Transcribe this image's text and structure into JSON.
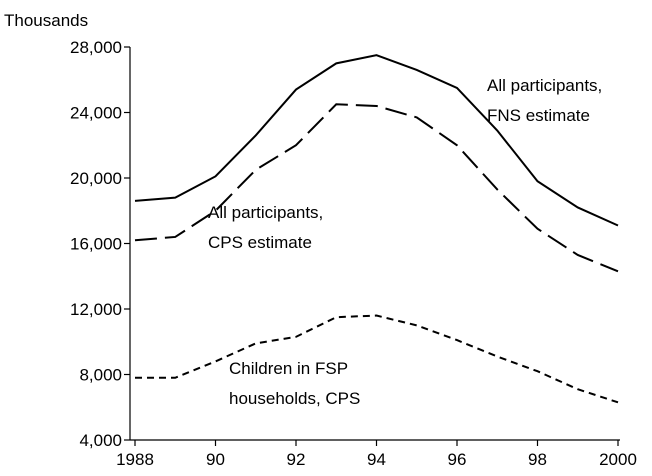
{
  "chart_data": {
    "type": "line",
    "y_axis_label": "Thousands",
    "x": [
      1988,
      1989,
      1990,
      1991,
      1992,
      1993,
      1994,
      1995,
      1996,
      1997,
      1998,
      1999,
      2000
    ],
    "xlim": [
      1988,
      2000
    ],
    "xticks": [
      1988,
      {
        "value": 1990,
        "label": "90"
      },
      {
        "value": 1992,
        "label": "92"
      },
      {
        "value": 1994,
        "label": "94"
      },
      {
        "value": 1996,
        "label": "96"
      },
      {
        "value": 1998,
        "label": "98"
      },
      2000
    ],
    "ylim": [
      4000,
      28000
    ],
    "yticks": [
      {
        "value": 4000,
        "label": "4,000"
      },
      {
        "value": 8000,
        "label": "8,000"
      },
      {
        "value": 12000,
        "label": "12,000"
      },
      {
        "value": 16000,
        "label": "16,000"
      },
      {
        "value": 20000,
        "label": "20,000"
      },
      {
        "value": 24000,
        "label": "24,000"
      },
      {
        "value": 28000,
        "label": "28,000"
      }
    ],
    "grid": false,
    "series": [
      {
        "name": [
          "All participants,",
          "FNS estimate"
        ],
        "color": "#000000",
        "dash": "solid",
        "values": [
          18600,
          18800,
          20100,
          22600,
          25400,
          27000,
          27500,
          26600,
          25500,
          22900,
          19800,
          18200,
          17100
        ]
      },
      {
        "name": [
          "All participants,",
          "CPS estimate"
        ],
        "color": "#000000",
        "dash": "long",
        "values": [
          16200,
          16400,
          18000,
          20500,
          22000,
          24500,
          24400,
          23700,
          22000,
          19300,
          16900,
          15300,
          14300
        ]
      },
      {
        "name": [
          "Children in FSP",
          "households, CPS"
        ],
        "color": "#000000",
        "dash": "short",
        "values": [
          7800,
          7800,
          8800,
          9900,
          10300,
          11500,
          11600,
          11000,
          10100,
          9100,
          8200,
          7100,
          6300
        ]
      }
    ]
  }
}
